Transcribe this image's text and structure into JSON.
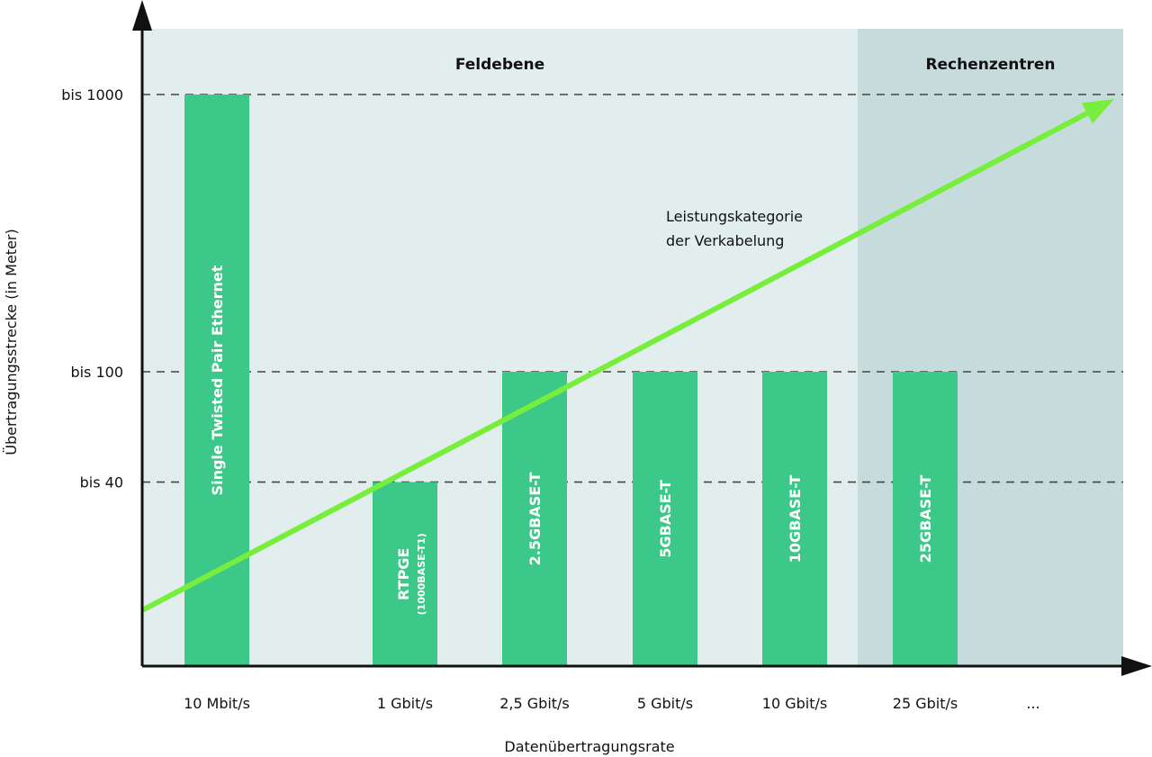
{
  "chart_data": {
    "type": "bar",
    "xlabel": "Datenübertragungsrate",
    "ylabel": "Übertragungsstrecke (in Meter)",
    "y_scale": "log",
    "y_ticks": [
      {
        "value": 40,
        "label": "bis 40"
      },
      {
        "value": 100,
        "label": "bis 100"
      },
      {
        "value": 1000,
        "label": "bis 1000"
      }
    ],
    "grid": "dashed horizontal lines at tick values",
    "categories": [
      "10 Mbit/s",
      "1 Gbit/s",
      "2,5 Gbit/s",
      "5 Gbit/s",
      "10 Gbit/s",
      "25 Gbit/s",
      "..."
    ],
    "bars": [
      {
        "category": "10 Mbit/s",
        "value": 1000,
        "label": "Single Twisted Pair Ethernet",
        "sublabel": ""
      },
      {
        "category": "1 Gbit/s",
        "value": 40,
        "label": "RTPGE",
        "sublabel": "(1000BASE-T1)"
      },
      {
        "category": "2,5 Gbit/s",
        "value": 100,
        "label": "2.5GBASE-T",
        "sublabel": ""
      },
      {
        "category": "5 Gbit/s",
        "value": 100,
        "label": "5GBASE-T",
        "sublabel": ""
      },
      {
        "category": "10 Gbit/s",
        "value": 100,
        "label": "10GBASE-T",
        "sublabel": ""
      },
      {
        "category": "25 Gbit/s",
        "value": 100,
        "label": "25GBASE-T",
        "sublabel": ""
      }
    ],
    "regions": [
      {
        "label": "Feldebene",
        "from": "10 Mbit/s",
        "to": "25 Gbit/s"
      },
      {
        "label": "Rechenzentren",
        "from": "25 Gbit/s",
        "to": "..."
      }
    ],
    "trend_arrow": {
      "label_line1": "Leistungskategorie",
      "label_line2": "der Verkabelung"
    },
    "colors": {
      "bar": "#3cc888",
      "region_feld": "#e2eeed",
      "region_rechen": "#c6dcdc",
      "arrow": "#78ee3c",
      "axis": "#111111",
      "grid": "#444444"
    }
  }
}
